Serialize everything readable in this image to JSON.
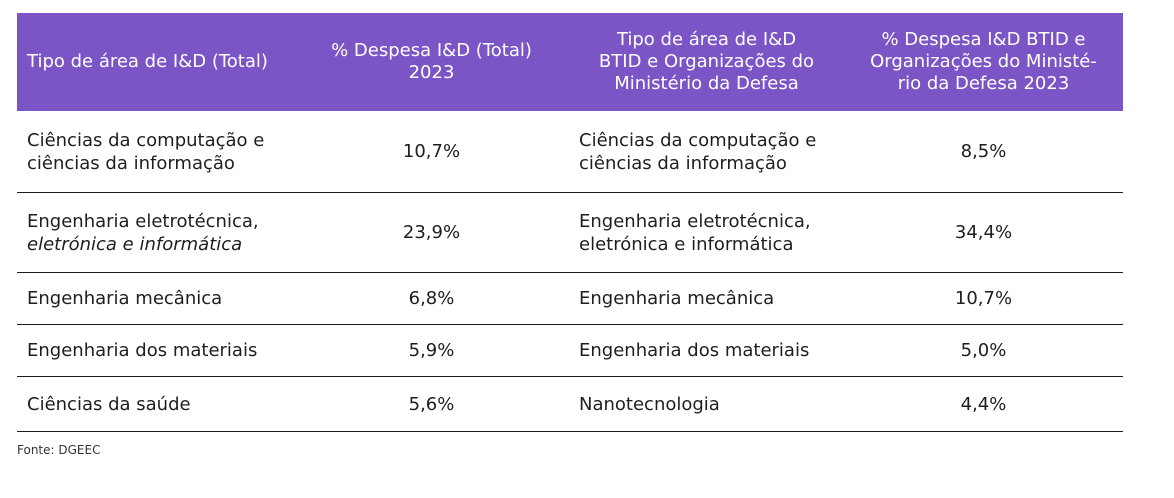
{
  "table": {
    "headers": [
      {
        "lines": [
          "Tipo de área de I&D (Total)"
        ]
      },
      {
        "lines": [
          "% Despesa I&D (Total)",
          "2023"
        ]
      },
      {
        "lines": [
          "Tipo de área de I&D",
          "BTID e Organizações do",
          "Ministério da Defesa"
        ]
      },
      {
        "lines": [
          "% Despesa I&D BTID e",
          "Organizações do Ministé-",
          "rio da Defesa 2023"
        ]
      }
    ],
    "rows": [
      {
        "area_total": [
          "Ciências da computação e",
          "ciências da informação"
        ],
        "pct_total": "10,7%",
        "area_btid": [
          "Ciências da computação e",
          "ciências da informação"
        ],
        "pct_btid": "8,5%"
      },
      {
        "area_total": [
          "Engenharia  eletrotécnica,",
          "eletrónica e informática"
        ],
        "pct_total": "23,9%",
        "area_btid": [
          "Engenharia  eletrotécnica,",
          "eletrónica e informática"
        ],
        "pct_btid": "34,4%"
      },
      {
        "area_total": [
          "Engenharia mecânica"
        ],
        "pct_total": "6,8%",
        "area_btid": [
          "Engenharia mecânica"
        ],
        "pct_btid": "10,7%"
      },
      {
        "area_total": [
          "Engenharia dos materiais"
        ],
        "pct_total": "5,9%",
        "area_btid": [
          "Engenharia dos materiais"
        ],
        "pct_btid": "5,0%"
      },
      {
        "area_total": [
          "Ciências da saúde"
        ],
        "pct_total": "5,6%",
        "area_btid": [
          "Nanotecnologia"
        ],
        "pct_btid": "4,4%"
      }
    ]
  },
  "source": "Fonte: DGEEC",
  "colors": {
    "header_bg": "#7b54c6",
    "header_text": "#ffffff",
    "body_text": "#1e1e1e"
  }
}
